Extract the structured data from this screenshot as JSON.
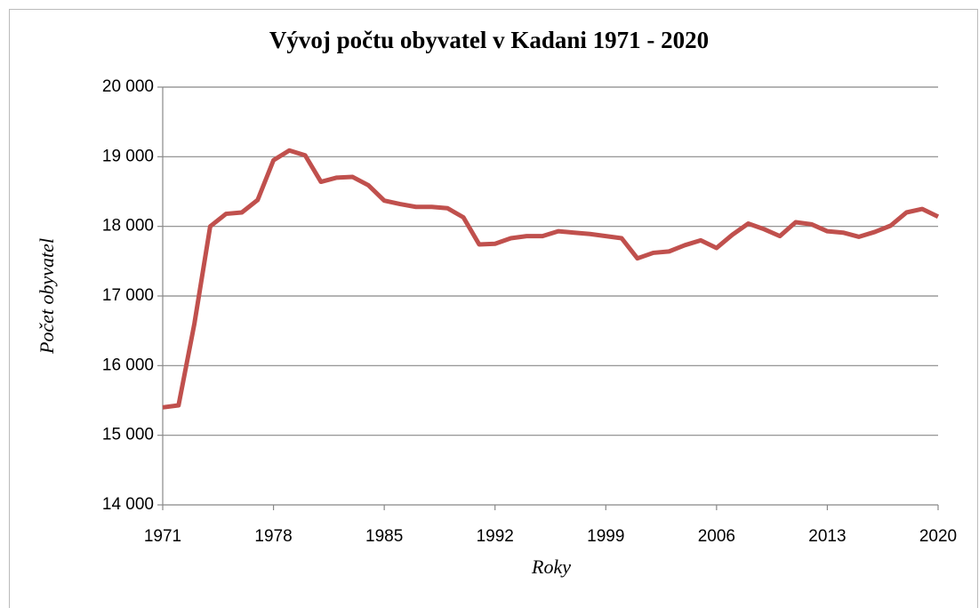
{
  "chart_data": {
    "type": "line",
    "title": "Vývoj počtu obyvatel v Kadani 1971 - 2020",
    "x_label": "Roky",
    "y_label": "Počet obyvatel",
    "x": [
      1971,
      1972,
      1973,
      1974,
      1975,
      1976,
      1977,
      1978,
      1979,
      1980,
      1981,
      1982,
      1983,
      1984,
      1985,
      1986,
      1987,
      1988,
      1989,
      1990,
      1991,
      1992,
      1993,
      1994,
      1995,
      1996,
      1997,
      1998,
      1999,
      2000,
      2001,
      2002,
      2003,
      2004,
      2005,
      2006,
      2007,
      2008,
      2009,
      2010,
      2011,
      2012,
      2013,
      2014,
      2015,
      2016,
      2017,
      2018,
      2019,
      2020
    ],
    "series": [
      {
        "name": "Počet obyvatel",
        "color": "#c0504d",
        "values": [
          15400,
          15430,
          16600,
          18000,
          18180,
          18200,
          18380,
          18950,
          19090,
          19020,
          18640,
          18700,
          18710,
          18590,
          18370,
          18320,
          18280,
          18280,
          18260,
          18130,
          17740,
          17750,
          17830,
          17860,
          17860,
          17930,
          17910,
          17890,
          17860,
          17830,
          17540,
          17620,
          17640,
          17730,
          17800,
          17690,
          17880,
          18040,
          17960,
          17860,
          18060,
          18030,
          17930,
          17910,
          17850,
          17920,
          18010,
          18200,
          18250,
          18140
        ]
      }
    ],
    "xlim": [
      1971,
      2020
    ],
    "xticks": [
      1971,
      1978,
      1985,
      1992,
      1999,
      2006,
      2013,
      2020
    ],
    "ylim": [
      14000,
      20000
    ],
    "yticks": [
      {
        "value": 14000,
        "label": "14 000"
      },
      {
        "value": 15000,
        "label": "15 000"
      },
      {
        "value": 16000,
        "label": "16 000"
      },
      {
        "value": 17000,
        "label": "17 000"
      },
      {
        "value": 18000,
        "label": "18 000"
      },
      {
        "value": 19000,
        "label": "19 000"
      },
      {
        "value": 20000,
        "label": "20 000"
      }
    ],
    "grid": true
  }
}
